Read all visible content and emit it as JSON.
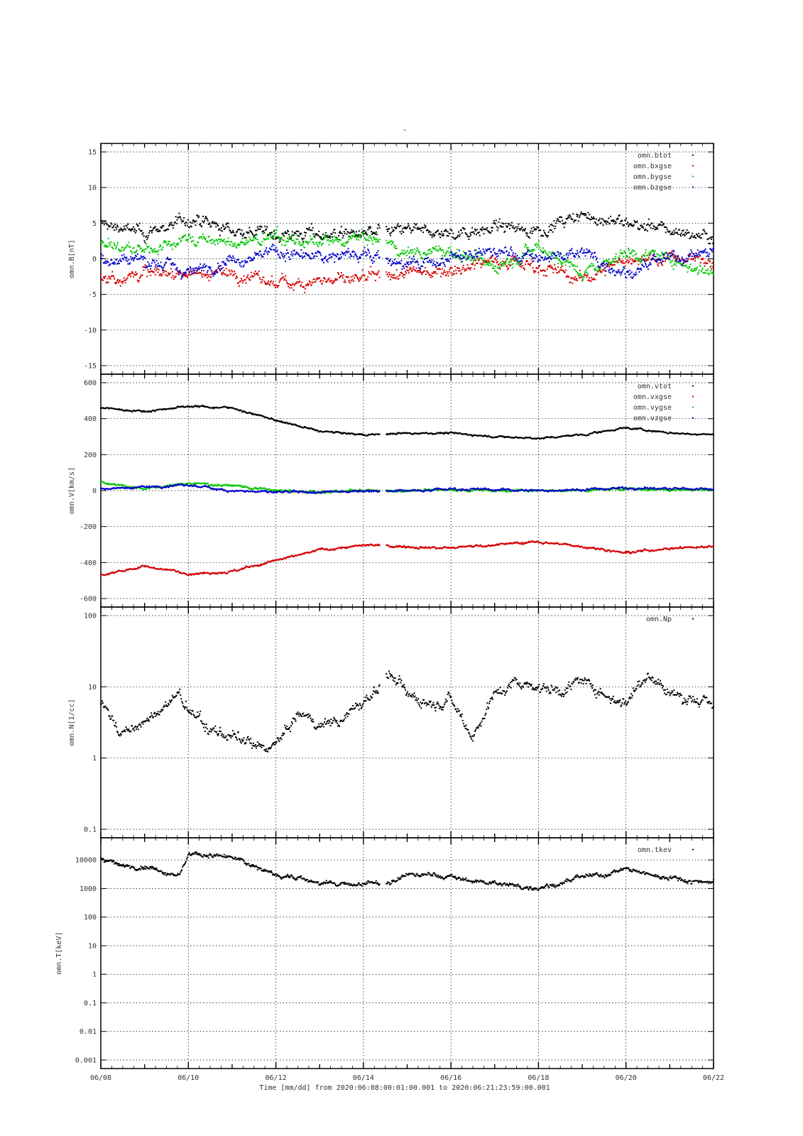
{
  "figure": {
    "title": "-",
    "footer": "Time [mm/dd]  from 2020:06:08:00:01:00.001  to  2020:06:21:23:59:00.001",
    "x_ticks": [
      "06/08",
      "06/10",
      "06/12",
      "06/14",
      "06/16",
      "06/18",
      "06/20",
      "06/22"
    ],
    "x_range_days": [
      0,
      14
    ],
    "gap_days": [
      6.38,
      6.52
    ]
  },
  "chart_data": [
    {
      "type": "scatter",
      "panel": "B",
      "ylabel": "omn.B[nT]",
      "ylim": [
        -15,
        15
      ],
      "yscale": "linear",
      "yticks": [
        15,
        10,
        5,
        0,
        -5,
        -10,
        -15
      ],
      "legend_position": "top-right",
      "grid": true,
      "x": [
        "06/08",
        "06/09",
        "06/10",
        "06/11",
        "06/12",
        "06/13",
        "06/14",
        "06/15",
        "06/16",
        "06/17",
        "06/18",
        "06/19",
        "06/20",
        "06/21",
        "06/22"
      ],
      "series": [
        {
          "name": "omn.btot",
          "color": "#000000",
          "values": [
            5,
            3.5,
            5.5,
            4,
            3.5,
            3.5,
            3.5,
            4,
            3.5,
            4.5,
            4,
            6,
            5,
            4,
            3
          ]
        },
        {
          "name": "omn.bxgse",
          "color": "#d40000",
          "values": [
            -3,
            -2,
            -2,
            -2,
            -3.5,
            -3,
            -3,
            -2,
            -1.5,
            0,
            -1,
            -3,
            0,
            0,
            0
          ]
        },
        {
          "name": "omn.bygse",
          "color": "#00c800",
          "values": [
            2,
            1,
            3,
            2,
            3,
            2,
            3,
            1,
            1,
            -1,
            2,
            -2,
            1,
            0,
            -2
          ]
        },
        {
          "name": "omn.bzgse",
          "color": "#0000c8",
          "values": [
            0,
            0,
            -2,
            0,
            1,
            0,
            1,
            -1,
            0,
            1,
            0,
            1,
            -2,
            0,
            1
          ]
        }
      ]
    },
    {
      "type": "scatter",
      "panel": "V",
      "ylabel": "omn.V[km/s]",
      "ylim": [
        -600,
        600
      ],
      "yscale": "linear",
      "yticks": [
        600,
        400,
        200,
        0,
        -200,
        -400,
        -600
      ],
      "legend_position": "top-right",
      "grid": true,
      "x": [
        "06/08",
        "06/09",
        "06/10",
        "06/11",
        "06/12",
        "06/13",
        "06/14",
        "06/15",
        "06/16",
        "06/17",
        "06/18",
        "06/19",
        "06/20",
        "06/21",
        "06/22"
      ],
      "series": [
        {
          "name": "omn.vtot",
          "color": "#000000",
          "values": [
            460,
            440,
            470,
            460,
            390,
            330,
            310,
            320,
            320,
            300,
            290,
            310,
            350,
            320,
            310
          ]
        },
        {
          "name": "omn.vxgse",
          "color": "#d40000",
          "values": [
            -470,
            -420,
            -460,
            -450,
            -390,
            -330,
            -305,
            -310,
            -320,
            -300,
            -285,
            -310,
            -345,
            -320,
            -310
          ]
        },
        {
          "name": "omn.vygse",
          "color": "#00c800",
          "values": [
            50,
            10,
            40,
            30,
            0,
            -10,
            0,
            0,
            5,
            0,
            0,
            0,
            10,
            5,
            5
          ]
        },
        {
          "name": "omn.vzgse",
          "color": "#0000c8",
          "values": [
            10,
            20,
            30,
            0,
            -10,
            -10,
            0,
            0,
            10,
            5,
            0,
            5,
            15,
            10,
            10
          ]
        }
      ]
    },
    {
      "type": "scatter",
      "panel": "N",
      "ylabel": "omn.N[1/cc]",
      "ylim": [
        0.1,
        100
      ],
      "yscale": "log",
      "yticks": [
        "100",
        "10",
        "1",
        "0.1"
      ],
      "legend_position": "top-right",
      "grid": true,
      "x": [
        "06/08",
        "06/08.5",
        "06/09",
        "06/09.8",
        "06/10",
        "06/10.5",
        "06/11",
        "06/11.5",
        "06/12",
        "06/12.5",
        "06/13",
        "06/13.5",
        "06/14",
        "06/14.6",
        "06/15",
        "06/15.5",
        "06/16",
        "06/16.5",
        "06/17",
        "06/17.5",
        "06/18",
        "06/18.5",
        "06/19",
        "06/19.5",
        "06/20",
        "06/20.5",
        "06/21",
        "06/21.5",
        "06/22"
      ],
      "series": [
        {
          "name": "omn.Np",
          "color": "#000000",
          "values": [
            6,
            2.2,
            3,
            8,
            4.5,
            2.5,
            2,
            1.4,
            1.5,
            4,
            3,
            3.5,
            6,
            15,
            8,
            6,
            7,
            2,
            8,
            12,
            10,
            9,
            12,
            8,
            6,
            16,
            8,
            7,
            5
          ]
        }
      ]
    },
    {
      "type": "scatter",
      "panel": "T",
      "ylabel": "omn.T[keV]",
      "ylim": [
        0.001,
        30000
      ],
      "yscale": "log",
      "yticks": [
        "10000",
        "1000",
        "100",
        "10",
        "1",
        "0.1",
        "0.01",
        "0.001"
      ],
      "legend_position": "top-right",
      "grid": true,
      "x": [
        "06/08",
        "06/08.5",
        "06/09",
        "06/09.8",
        "06/10",
        "06/10.5",
        "06/11",
        "06/11.5",
        "06/12",
        "06/12.5",
        "06/13",
        "06/13.5",
        "06/14",
        "06/14.6",
        "06/15",
        "06/15.5",
        "06/16",
        "06/16.5",
        "06/17",
        "06/17.5",
        "06/18",
        "06/18.5",
        "06/19",
        "06/19.5",
        "06/20",
        "06/20.5",
        "06/21",
        "06/21.5",
        "06/22"
      ],
      "series": [
        {
          "name": "omn.tkev",
          "color": "#000000",
          "values": [
            12000,
            6000,
            6000,
            3000,
            15000,
            15000,
            12000,
            6000,
            3000,
            2500,
            1500,
            1400,
            1500,
            1500,
            3000,
            3000,
            2500,
            1800,
            1600,
            1200,
            1100,
            1500,
            2500,
            3000,
            5000,
            3000,
            2500,
            1800,
            1800
          ]
        }
      ]
    }
  ]
}
